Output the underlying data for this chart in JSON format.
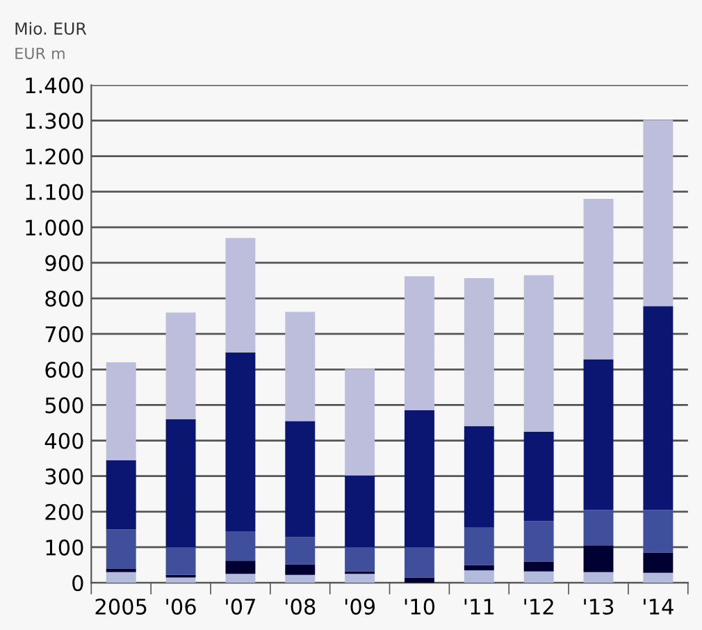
{
  "chart_data": {
    "type": "bar",
    "title": "Mio. EUR",
    "subtitle": "EUR m",
    "stacked": true,
    "categories": [
      "2005",
      "'06",
      "'07",
      "'08",
      "'09",
      "'10",
      "'11",
      "'12",
      "'13",
      "'14"
    ],
    "series": [
      {
        "color": "#b3bbdd",
        "values": [
          30,
          15,
          25,
          22,
          25,
          0,
          35,
          32,
          30,
          28
        ]
      },
      {
        "color": "#000033",
        "values": [
          10,
          7,
          37,
          30,
          7,
          15,
          15,
          28,
          75,
          57
        ]
      },
      {
        "color": "#3f4f9c",
        "values": [
          110,
          78,
          83,
          76,
          68,
          85,
          105,
          113,
          100,
          120
        ]
      },
      {
        "color": "#0b1572",
        "values": [
          195,
          360,
          503,
          327,
          202,
          385,
          285,
          252,
          423,
          573
        ]
      },
      {
        "color": "#bcbedc",
        "values": [
          275,
          300,
          322,
          307,
          300,
          377,
          417,
          440,
          452,
          524
        ]
      }
    ],
    "ylim": [
      0,
      1400
    ],
    "yticks": [
      0,
      100,
      200,
      300,
      400,
      500,
      600,
      700,
      800,
      900,
      {
        "value": 1000,
        "label": "1.000"
      },
      {
        "value": 1100,
        "label": "1.100"
      },
      {
        "value": 1200,
        "label": "1.200"
      },
      {
        "value": 1300,
        "label": "1.300"
      },
      {
        "value": 1400,
        "label": "1.400"
      }
    ],
    "grid": "y",
    "legend": false
  }
}
